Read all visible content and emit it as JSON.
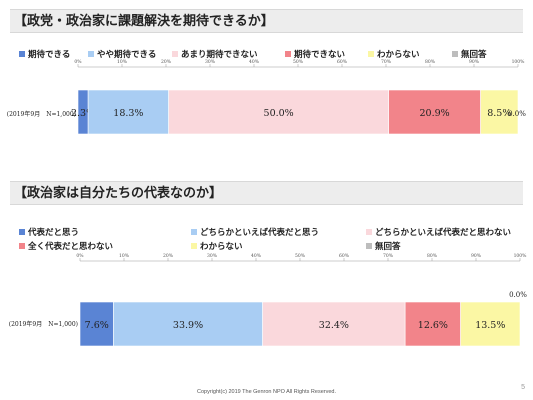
{
  "colors": {
    "c1": "#5a84d4",
    "c2": "#a9cdf3",
    "c3": "#fad8dc",
    "c4": "#f2848a",
    "c5": "#fbf7a4",
    "c6": "#bdbdbd"
  },
  "footer": "Copyright(c) 2019 The Genron NPO  All Rights Reserved.",
  "page_number": "5",
  "chart_data": [
    {
      "type": "bar",
      "orientation": "horizontal-stacked-100",
      "title": "【政党・政治家に課題解決を期待できるか】",
      "categories": [
        "(2019年9月　N=1,000)"
      ],
      "xlim": [
        0,
        100
      ],
      "x_ticks": [
        "0%",
        "10%",
        "20%",
        "30%",
        "40%",
        "50%",
        "60%",
        "70%",
        "80%",
        "90%",
        "100%"
      ],
      "legend_position": "top",
      "series": [
        {
          "name": "期待できる",
          "values": [
            2.3
          ],
          "label": "2.3%"
        },
        {
          "name": "やや期待できる",
          "values": [
            18.3
          ],
          "label": "18.3%"
        },
        {
          "name": "あまり期待できない",
          "values": [
            50.0
          ],
          "label": "50.0%"
        },
        {
          "name": "期待できない",
          "values": [
            20.9
          ],
          "label": "20.9%"
        },
        {
          "name": "わからない",
          "values": [
            8.5
          ],
          "label": "8.5%"
        },
        {
          "name": "無回答",
          "values": [
            0.0
          ],
          "label": "0.0%"
        }
      ]
    },
    {
      "type": "bar",
      "orientation": "horizontal-stacked-100",
      "title": "【政治家は自分たちの代表なのか】",
      "categories": [
        "(2019年9月　N=1,000)"
      ],
      "xlim": [
        0,
        100
      ],
      "x_ticks": [
        "0%",
        "10%",
        "20%",
        "30%",
        "40%",
        "50%",
        "60%",
        "70%",
        "80%",
        "90%",
        "100%"
      ],
      "legend_position": "top",
      "series": [
        {
          "name": "代表だと思う",
          "values": [
            7.6
          ],
          "label": "7.6%"
        },
        {
          "name": "どちらかといえば代表だと思う",
          "values": [
            33.9
          ],
          "label": "33.9%"
        },
        {
          "name": "どちらかといえば代表だと思わない",
          "values": [
            32.4
          ],
          "label": "32.4%"
        },
        {
          "name": "全く代表だと思わない",
          "values": [
            12.6
          ],
          "label": "12.6%"
        },
        {
          "name": "わからない",
          "values": [
            13.5
          ],
          "label": "13.5%"
        },
        {
          "name": "無回答",
          "values": [
            0.0
          ],
          "label": "0.0%"
        }
      ]
    }
  ]
}
